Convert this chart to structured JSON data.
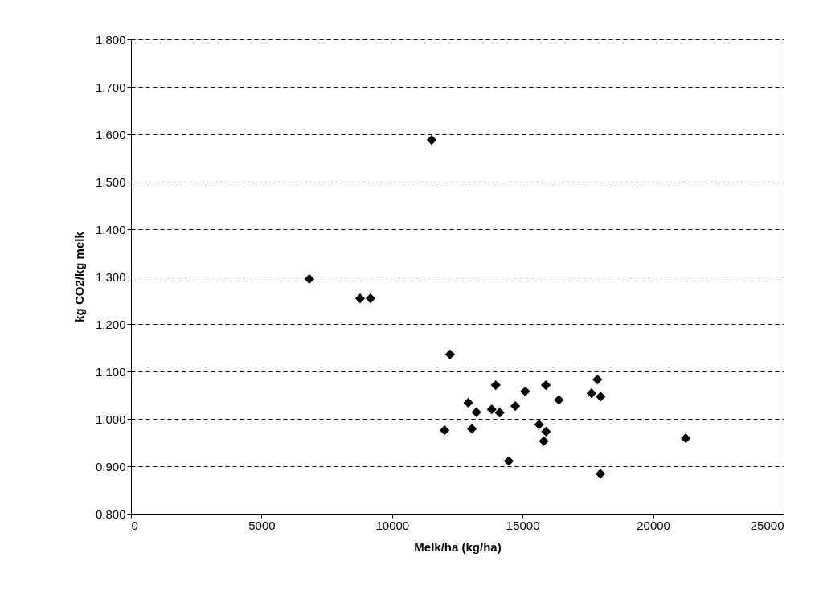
{
  "chart_data": {
    "type": "scatter",
    "xlabel": "Melk/ha (kg/ha)",
    "ylabel": "kg CO2/kg melk",
    "x": [
      6830,
      8775,
      9175,
      11515,
      12220,
      13970,
      12920,
      13230,
      13815,
      14120,
      14720,
      15100,
      15890,
      16390,
      17865,
      17640,
      17990,
      12010,
      13060,
      15630,
      15900,
      15810,
      14470,
      17980,
      21250
    ],
    "series": [
      {
        "color": "#000000",
        "values": [
          1.295,
          1.254,
          1.254,
          1.588,
          1.136,
          1.071,
          1.034,
          1.014,
          1.02,
          1.013,
          1.027,
          1.058,
          1.071,
          1.04,
          1.083,
          1.054,
          1.047,
          0.976,
          0.979,
          0.988,
          0.973,
          0.953,
          0.911,
          0.884,
          0.959
        ]
      }
    ],
    "xlim": [
      0,
      25000
    ],
    "xticks": [
      0,
      5000,
      10000,
      15000,
      20000,
      25000
    ],
    "ylim": [
      0.8,
      1.8
    ],
    "yticks": [
      {
        "value": 0.8,
        "label": "0.800"
      },
      {
        "value": 0.9,
        "label": "0.900"
      },
      {
        "value": 1.0,
        "label": "1.000"
      },
      {
        "value": 1.1,
        "label": "1.100"
      },
      {
        "value": 1.2,
        "label": "1.200"
      },
      {
        "value": 1.3,
        "label": "1.300"
      },
      {
        "value": 1.4,
        "label": "1.400"
      },
      {
        "value": 1.5,
        "label": "1.500"
      },
      {
        "value": 1.6,
        "label": "1.600"
      },
      {
        "value": 1.7,
        "label": "1.700"
      },
      {
        "value": 1.8,
        "label": "1.800"
      }
    ],
    "grid": "y",
    "marker": "diamond",
    "legend": false
  }
}
